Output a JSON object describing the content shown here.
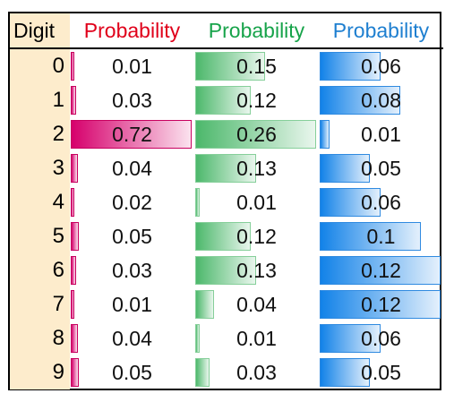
{
  "header": {
    "digit_label": "Digit",
    "columns": [
      {
        "label": "Probability",
        "color": "#e0001a"
      },
      {
        "label": "Probability",
        "color": "#17a34a"
      },
      {
        "label": "Probability",
        "color": "#1e7fd0"
      }
    ]
  },
  "colors": {
    "digit_column_fill": "#fdeccc",
    "bar_red": "#d6006c",
    "bar_green": "#4cb86b",
    "bar_blue": "#1282e8"
  },
  "scale_max": [
    0.72,
    0.26,
    0.12
  ],
  "rows": [
    {
      "digit": "0",
      "p": [
        "0.01",
        "0.15",
        "0.06"
      ]
    },
    {
      "digit": "1",
      "p": [
        "0.03",
        "0.12",
        "0.08"
      ]
    },
    {
      "digit": "2",
      "p": [
        "0.72",
        "0.26",
        "0.01"
      ]
    },
    {
      "digit": "3",
      "p": [
        "0.04",
        "0.13",
        "0.05"
      ]
    },
    {
      "digit": "4",
      "p": [
        "0.02",
        "0.01",
        "0.06"
      ]
    },
    {
      "digit": "5",
      "p": [
        "0.05",
        "0.12",
        "0.1"
      ]
    },
    {
      "digit": "6",
      "p": [
        "0.03",
        "0.13",
        "0.12"
      ]
    },
    {
      "digit": "7",
      "p": [
        "0.01",
        "0.04",
        "0.12"
      ]
    },
    {
      "digit": "8",
      "p": [
        "0.04",
        "0.01",
        "0.06"
      ]
    },
    {
      "digit": "9",
      "p": [
        "0.05",
        "0.03",
        "0.05"
      ]
    }
  ]
}
